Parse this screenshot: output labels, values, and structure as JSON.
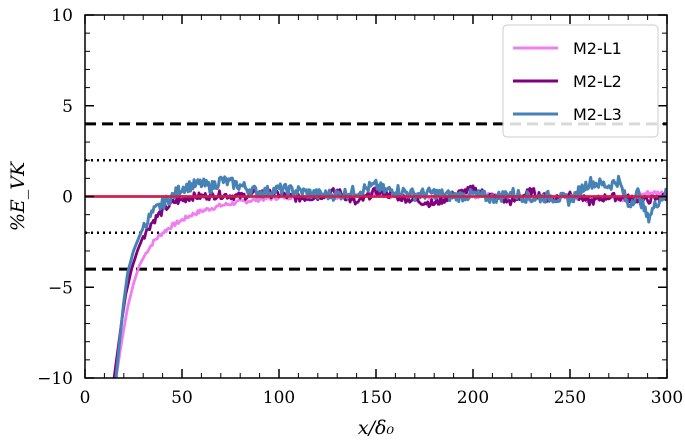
{
  "chart_data": {
    "type": "line",
    "xlabel": "x/δ₀",
    "ylabel": "%E_VK",
    "xlim": [
      0,
      300
    ],
    "ylim": [
      -10,
      10
    ],
    "x_ticks": [
      0,
      50,
      100,
      150,
      200,
      250,
      300
    ],
    "y_ticks": [
      -10,
      -5,
      0,
      5,
      10
    ],
    "x_tick_labels": [
      "0",
      "50",
      "100",
      "150",
      "200",
      "250",
      "300"
    ],
    "y_tick_labels": [
      "−10",
      "−5",
      "0",
      "5",
      "10"
    ],
    "legend_placement": "top-right",
    "reference_lines": [
      {
        "y": 4,
        "style": "dashed",
        "color": "#000000"
      },
      {
        "y": -4,
        "style": "dashed",
        "color": "#000000"
      },
      {
        "y": 2,
        "style": "dotted",
        "color": "#000000"
      },
      {
        "y": -2,
        "style": "dotted",
        "color": "#000000"
      },
      {
        "y": 0,
        "style": "solid",
        "color": "#d0204a"
      }
    ],
    "series": [
      {
        "name": "M2-L1",
        "color": "#f07ef0",
        "x": [
          16,
          18,
          20,
          22,
          25,
          28,
          32,
          36,
          40,
          45,
          50,
          55,
          60,
          70,
          80,
          90,
          100,
          110,
          120,
          130,
          140,
          150,
          160,
          170,
          180,
          190,
          200,
          210,
          220,
          230,
          240,
          250,
          260,
          270,
          280,
          290,
          300
        ],
        "y": [
          -10,
          -8.6,
          -7.3,
          -6.1,
          -4.8,
          -3.8,
          -3.0,
          -2.4,
          -2.0,
          -1.6,
          -1.3,
          -1.0,
          -0.8,
          -0.5,
          -0.3,
          -0.15,
          -0.05,
          0.0,
          0.05,
          0.0,
          -0.05,
          0.1,
          0.0,
          0.1,
          -0.05,
          0.05,
          0.0,
          0.1,
          0.0,
          -0.1,
          0.0,
          0.05,
          -0.2,
          0.0,
          -0.2,
          0.2,
          0.2
        ]
      },
      {
        "name": "M2-L2",
        "color": "#800080",
        "x": [
          15,
          17,
          19,
          21,
          24,
          27,
          30,
          34,
          38,
          42,
          46,
          50,
          55,
          60,
          70,
          80,
          90,
          100,
          110,
          120,
          130,
          140,
          150,
          160,
          170,
          180,
          190,
          200,
          210,
          220,
          230,
          240,
          250,
          260,
          270,
          280,
          290,
          300
        ],
        "y": [
          -10,
          -8.4,
          -6.8,
          -5.4,
          -4.0,
          -3.0,
          -2.2,
          -1.5,
          -1.0,
          -0.6,
          -0.3,
          -0.2,
          0.0,
          0.0,
          0.1,
          0.0,
          0.2,
          0.1,
          -0.1,
          0.0,
          0.3,
          -0.4,
          0.3,
          0.0,
          -0.2,
          -0.4,
          0.1,
          0.4,
          0.0,
          -0.3,
          0.3,
          -0.2,
          0.2,
          -0.3,
          0.0,
          -0.1,
          -0.2,
          0.0
        ]
      },
      {
        "name": "M2-L3",
        "color": "#4682b4",
        "x": [
          16,
          18,
          20,
          22,
          25,
          28,
          31,
          35,
          40,
          45,
          50,
          55,
          60,
          65,
          70,
          80,
          90,
          100,
          110,
          120,
          130,
          140,
          150,
          155,
          160,
          170,
          180,
          190,
          200,
          210,
          220,
          230,
          240,
          250,
          255,
          260,
          270,
          275,
          280,
          285,
          290,
          295,
          300
        ],
        "y": [
          -10,
          -7.8,
          -5.8,
          -4.2,
          -3.0,
          -2.2,
          -1.5,
          -0.9,
          -0.4,
          0.0,
          0.5,
          0.6,
          0.7,
          0.5,
          0.9,
          0.6,
          0.2,
          0.4,
          0.3,
          0.1,
          0.1,
          0.3,
          0.6,
          0.3,
          0.4,
          0.1,
          0.2,
          0.0,
          0.1,
          -0.1,
          0.2,
          -0.1,
          0.0,
          -0.2,
          0.3,
          0.8,
          0.6,
          0.9,
          -0.5,
          0.2,
          -1.2,
          -0.3,
          0.2
        ]
      }
    ]
  }
}
